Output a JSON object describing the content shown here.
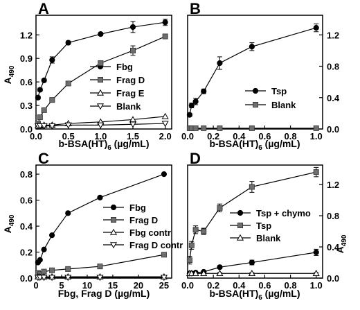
{
  "chart_data": [
    {
      "panel": "A",
      "type": "line",
      "xlabel": "b-BSA(HT)",
      "xlabel_sub": "6",
      "xlabel_unit": "(µg/mL)",
      "ylabel": "A",
      "ylabel_sub": "490",
      "xlim": [
        0,
        2.1
      ],
      "ylim": [
        0,
        1.45
      ],
      "xticks": [
        0,
        0.5,
        1.0,
        1.5,
        2.0
      ],
      "xtick_labels": [
        "0.0",
        "0.5",
        "1.0",
        "1.5",
        "2.0"
      ],
      "yticks": [
        0,
        0.3,
        0.6,
        0.9,
        1.2
      ],
      "ytick_labels": [
        "0.0",
        "0.3",
        "0.6",
        "0.9",
        "1.2"
      ],
      "yaxis_side": "left",
      "legend_position": "right",
      "series": [
        {
          "name": "Fbg",
          "marker": "circle",
          "x": [
            0.031,
            0.0625,
            0.125,
            0.25,
            0.5,
            1.0,
            1.5,
            2.0
          ],
          "y": [
            0.4,
            0.5,
            0.62,
            0.88,
            1.1,
            1.21,
            1.3,
            1.36
          ],
          "err": [
            0.02,
            0.02,
            0.02,
            0.04,
            0.02,
            0.02,
            0.07,
            0.04
          ]
        },
        {
          "name": "Frag D",
          "marker": "square",
          "x": [
            0.031,
            0.0625,
            0.125,
            0.25,
            0.5,
            1.0,
            1.5,
            2.0
          ],
          "y": [
            0.07,
            0.15,
            0.24,
            0.37,
            0.58,
            0.84,
            1.0,
            1.18
          ],
          "err": [
            0.01,
            0.01,
            0.02,
            0.02,
            0.02,
            0.02,
            0.06,
            0.03
          ]
        },
        {
          "name": "Frag E",
          "marker": "triangle-up",
          "x": [
            0.031,
            0.0625,
            0.125,
            0.25,
            0.5,
            1.0,
            1.5,
            2.0
          ],
          "y": [
            0.04,
            0.04,
            0.05,
            0.05,
            0.07,
            0.09,
            0.12,
            0.16
          ],
          "err": [
            0,
            0,
            0,
            0,
            0,
            0,
            0,
            0
          ]
        },
        {
          "name": "Blank",
          "marker": "triangle-down",
          "x": [
            0.031,
            0.0625,
            0.125,
            0.25,
            0.5,
            1.0,
            1.5,
            2.0
          ],
          "y": [
            0.04,
            0.04,
            0.04,
            0.04,
            0.05,
            0.05,
            0.06,
            0.07
          ],
          "err": [
            0,
            0,
            0,
            0,
            0,
            0,
            0,
            0
          ]
        }
      ]
    },
    {
      "panel": "B",
      "type": "line",
      "xlabel": "b-BSA(HT)",
      "xlabel_sub": "6",
      "xlabel_unit": "(µg/mL)",
      "ylabel": "",
      "ylabel_sub": "",
      "xlim": [
        0,
        1.05
      ],
      "ylim": [
        0,
        1.45
      ],
      "xticks": [
        0,
        0.2,
        0.4,
        0.6,
        0.8,
        1.0
      ],
      "xtick_labels": [
        "0.0",
        "0.2",
        "0.4",
        "0.6",
        "0.8",
        "1.0"
      ],
      "yticks": [
        0,
        0.4,
        0.8,
        1.2
      ],
      "ytick_labels": [
        "0.0",
        "0.4",
        "0.8",
        "1.2"
      ],
      "yaxis_side": "right",
      "legend_position": "center",
      "series": [
        {
          "name": "Tsp",
          "marker": "circle",
          "x": [
            0.0156,
            0.031,
            0.0625,
            0.125,
            0.25,
            0.5,
            1.0
          ],
          "y": [
            0.18,
            0.3,
            0.35,
            0.48,
            0.84,
            1.05,
            1.29
          ],
          "err": [
            0.02,
            0.03,
            0.04,
            0.03,
            0.08,
            0.05,
            0.05
          ]
        },
        {
          "name": "Blank",
          "marker": "square",
          "x": [
            0.0156,
            0.031,
            0.0625,
            0.125,
            0.25,
            0.5,
            1.0
          ],
          "y": [
            0.01,
            0.01,
            0.01,
            0.01,
            0.01,
            0.01,
            0.01
          ],
          "err": [
            0,
            0,
            0,
            0,
            0,
            0,
            0
          ]
        }
      ]
    },
    {
      "panel": "C",
      "type": "line",
      "xlabel": "Fbg, Frag D",
      "xlabel_sub": "",
      "xlabel_unit": "(µg/mL)",
      "ylabel": "A",
      "ylabel_sub": "490",
      "xlim": [
        0,
        26.5
      ],
      "ylim": [
        0,
        0.87
      ],
      "xticks": [
        0,
        5,
        10,
        15,
        20,
        25
      ],
      "xtick_labels": [
        "0",
        "5",
        "10",
        "15",
        "20",
        "25"
      ],
      "yticks": [
        0,
        0.2,
        0.4,
        0.6,
        0.8
      ],
      "ytick_labels": [
        "0.0",
        "0.2",
        "0.4",
        "0.6",
        "0.8"
      ],
      "yaxis_side": "left",
      "legend_position": "right",
      "series": [
        {
          "name": "Fbg",
          "marker": "circle",
          "x": [
            0.39,
            0.78,
            1.56,
            3.12,
            6.25,
            12.5,
            25
          ],
          "y": [
            0.12,
            0.14,
            0.22,
            0.33,
            0.5,
            0.62,
            0.8
          ],
          "err": [
            0,
            0,
            0,
            0,
            0,
            0,
            0
          ]
        },
        {
          "name": "Frag D",
          "marker": "square",
          "x": [
            0.39,
            0.78,
            1.56,
            3.12,
            6.25,
            12.5,
            25
          ],
          "y": [
            0.04,
            0.03,
            0.05,
            0.06,
            0.07,
            0.09,
            0.18
          ],
          "err": [
            0,
            0,
            0,
            0,
            0,
            0,
            0
          ]
        },
        {
          "name": "Fbg contr",
          "marker": "triangle-up",
          "x": [
            0.39,
            0.78,
            1.56,
            3.12,
            6.25,
            12.5,
            25
          ],
          "y": [
            0.01,
            0.01,
            0.01,
            0.01,
            0.01,
            0.01,
            0.01
          ],
          "err": [
            0,
            0,
            0,
            0,
            0,
            0,
            0
          ]
        },
        {
          "name": "Frag D contr",
          "marker": "triangle-down",
          "x": [
            0.39,
            0.78,
            1.56,
            3.12,
            6.25,
            12.5,
            25
          ],
          "y": [
            0.005,
            0.005,
            0.005,
            0.005,
            0.005,
            0.005,
            0.005
          ],
          "err": [
            0,
            0,
            0,
            0,
            0,
            0,
            0
          ]
        }
      ]
    },
    {
      "panel": "D",
      "type": "line",
      "xlabel": "b-BSA(HT)",
      "xlabel_sub": "6",
      "xlabel_unit": "(µg/mL)",
      "ylabel": "A",
      "ylabel_sub": "490",
      "xlim": [
        0,
        1.05
      ],
      "ylim": [
        0,
        1.45
      ],
      "xticks": [
        0,
        0.2,
        0.4,
        0.6,
        0.8,
        1.0
      ],
      "xtick_labels": [
        "0.0",
        "0.2",
        "0.4",
        "0.6",
        "0.8",
        "1.0"
      ],
      "yticks": [
        0,
        0.4,
        0.8,
        1.2
      ],
      "ytick_labels": [
        "0.0",
        "0.4",
        "0.8",
        "1.2"
      ],
      "yaxis_side": "right",
      "legend_position": "right",
      "series": [
        {
          "name": "Tsp + chymo",
          "marker": "circle",
          "x": [
            0.0156,
            0.031,
            0.0625,
            0.125,
            0.25,
            0.5,
            1.0
          ],
          "y": [
            0.06,
            0.06,
            0.07,
            0.08,
            0.14,
            0.2,
            0.33
          ],
          "err": [
            0.01,
            0.01,
            0.01,
            0.01,
            0.02,
            0.03,
            0.04
          ]
        },
        {
          "name": "Tsp",
          "marker": "square",
          "x": [
            0.0156,
            0.031,
            0.0625,
            0.125,
            0.25,
            0.5,
            1.0
          ],
          "y": [
            0.23,
            0.42,
            0.62,
            0.6,
            0.9,
            1.17,
            1.36
          ],
          "err": [
            0.05,
            0.05,
            0.05,
            0.04,
            0.05,
            0.07,
            0.06
          ]
        },
        {
          "name": "Blank",
          "marker": "triangle-up",
          "x": [
            0.0156,
            0.031,
            0.0625,
            0.125,
            0.25,
            0.5,
            1.0
          ],
          "y": [
            0.06,
            0.06,
            0.06,
            0.06,
            0.06,
            0.06,
            0.06
          ],
          "err": [
            0.01,
            0.01,
            0.01,
            0.01,
            0.01,
            0.01,
            0.01
          ]
        }
      ]
    }
  ]
}
